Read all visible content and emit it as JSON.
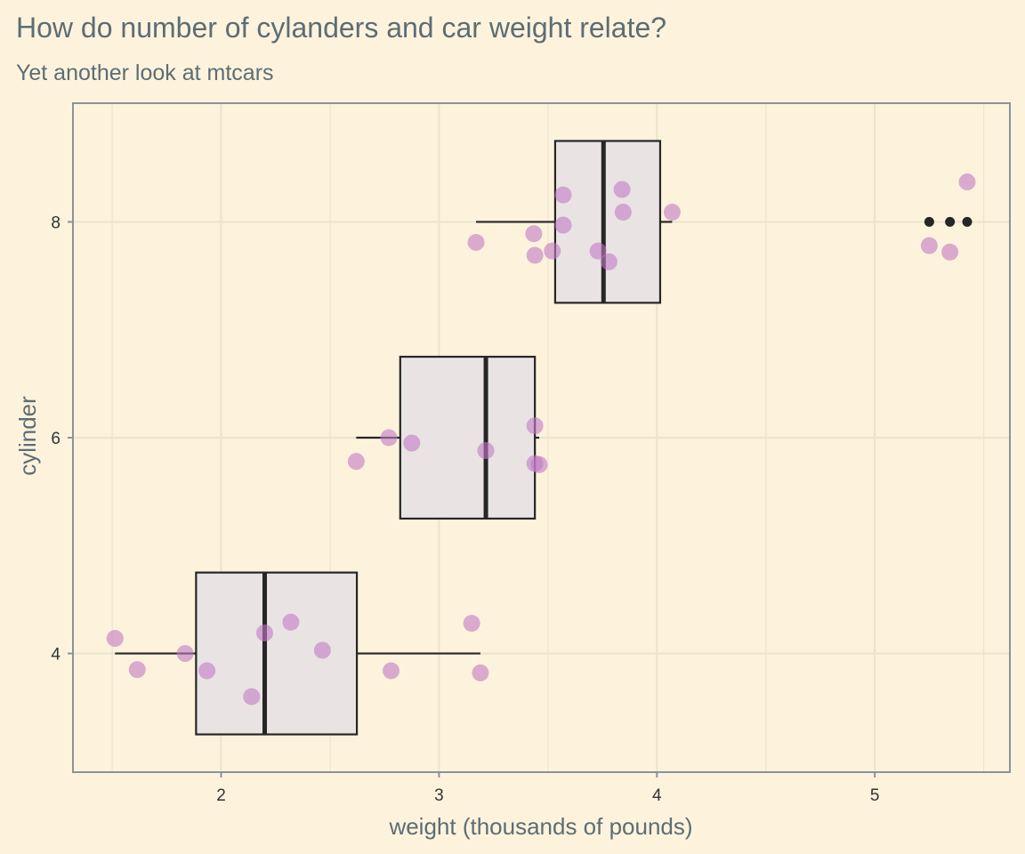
{
  "chart_data": {
    "type": "boxplot",
    "title": "How do number of cylanders and car weight relate?",
    "subtitle": "Yet another look at mtcars",
    "xlabel": "weight (thousands of pounds)",
    "ylabel": "cylinder",
    "x_ticks": [
      2,
      3,
      4,
      5
    ],
    "y_ticks": [
      4,
      6,
      8
    ],
    "xlim": [
      1.32,
      5.62
    ],
    "ylim": [
      2.9,
      9.1
    ],
    "grid": true,
    "orientation": "horizontal",
    "colors": {
      "background": "#fdf3dd",
      "panel_border": "#8a9399",
      "grid": "#ece4cd",
      "box_fill": "#e9e3e3",
      "box_line": "#262626",
      "points": "#c279c4",
      "outliers": "#262626",
      "title_text": "#5d6d73"
    },
    "boxes": [
      {
        "cyl": 4,
        "whisker_low": 1.513,
        "q1": 1.885,
        "median": 2.2,
        "q3": 2.623,
        "whisker_high": 3.19,
        "outliers": []
      },
      {
        "cyl": 6,
        "whisker_low": 2.62,
        "q1": 2.822,
        "median": 3.215,
        "q3": 3.44,
        "whisker_high": 3.46,
        "outliers": []
      },
      {
        "cyl": 8,
        "whisker_low": 3.17,
        "q1": 3.533,
        "median": 3.755,
        "q3": 4.015,
        "whisker_high": 4.07,
        "outliers": [
          5.25,
          5.345,
          5.424
        ]
      }
    ],
    "points": [
      {
        "weight": 1.513,
        "cyl": 4.14
      },
      {
        "weight": 1.615,
        "cyl": 3.85
      },
      {
        "weight": 1.835,
        "cyl": 4.0
      },
      {
        "weight": 1.935,
        "cyl": 3.84
      },
      {
        "weight": 2.14,
        "cyl": 3.6
      },
      {
        "weight": 2.2,
        "cyl": 4.19
      },
      {
        "weight": 2.32,
        "cyl": 4.29
      },
      {
        "weight": 2.465,
        "cyl": 4.03
      },
      {
        "weight": 2.78,
        "cyl": 3.84
      },
      {
        "weight": 3.15,
        "cyl": 4.28
      },
      {
        "weight": 3.19,
        "cyl": 3.82
      },
      {
        "weight": 2.62,
        "cyl": 5.78
      },
      {
        "weight": 2.77,
        "cyl": 6.0
      },
      {
        "weight": 2.875,
        "cyl": 5.95
      },
      {
        "weight": 3.215,
        "cyl": 5.88
      },
      {
        "weight": 3.44,
        "cyl": 6.11
      },
      {
        "weight": 3.44,
        "cyl": 5.76
      },
      {
        "weight": 3.46,
        "cyl": 5.75
      },
      {
        "weight": 3.17,
        "cyl": 7.81
      },
      {
        "weight": 3.435,
        "cyl": 7.89
      },
      {
        "weight": 3.44,
        "cyl": 7.69
      },
      {
        "weight": 3.52,
        "cyl": 7.73
      },
      {
        "weight": 3.57,
        "cyl": 8.25
      },
      {
        "weight": 3.57,
        "cyl": 7.97
      },
      {
        "weight": 3.73,
        "cyl": 7.73
      },
      {
        "weight": 3.78,
        "cyl": 7.63
      },
      {
        "weight": 3.84,
        "cyl": 8.3
      },
      {
        "weight": 3.845,
        "cyl": 8.09
      },
      {
        "weight": 4.07,
        "cyl": 8.09
      },
      {
        "weight": 5.25,
        "cyl": 7.78
      },
      {
        "weight": 5.345,
        "cyl": 7.72
      },
      {
        "weight": 5.424,
        "cyl": 8.37
      }
    ]
  }
}
